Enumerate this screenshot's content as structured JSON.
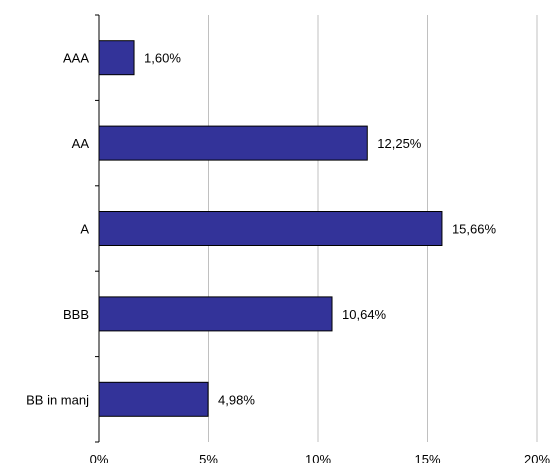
{
  "chart_data": {
    "type": "bar",
    "orientation": "horizontal",
    "title": "",
    "xlabel": "",
    "ylabel": "",
    "categories": [
      "AAA",
      "AA",
      "A",
      "BBB",
      "BB in manj"
    ],
    "values": [
      1.6,
      12.25,
      15.66,
      10.64,
      4.98
    ],
    "data_labels": [
      "1,60%",
      "12,25%",
      "15,66%",
      "10,64%",
      "4,98%"
    ],
    "xlim": [
      0,
      20
    ],
    "x_ticks": [
      0,
      5,
      10,
      15,
      20
    ],
    "x_tick_labels": [
      "0%",
      "5%",
      "10%",
      "15%",
      "20%"
    ],
    "grid": "vertical",
    "legend": "none",
    "bar_color": "#333399",
    "bar_edge_color": "#000000",
    "grid_color": "#c0c0c0"
  }
}
